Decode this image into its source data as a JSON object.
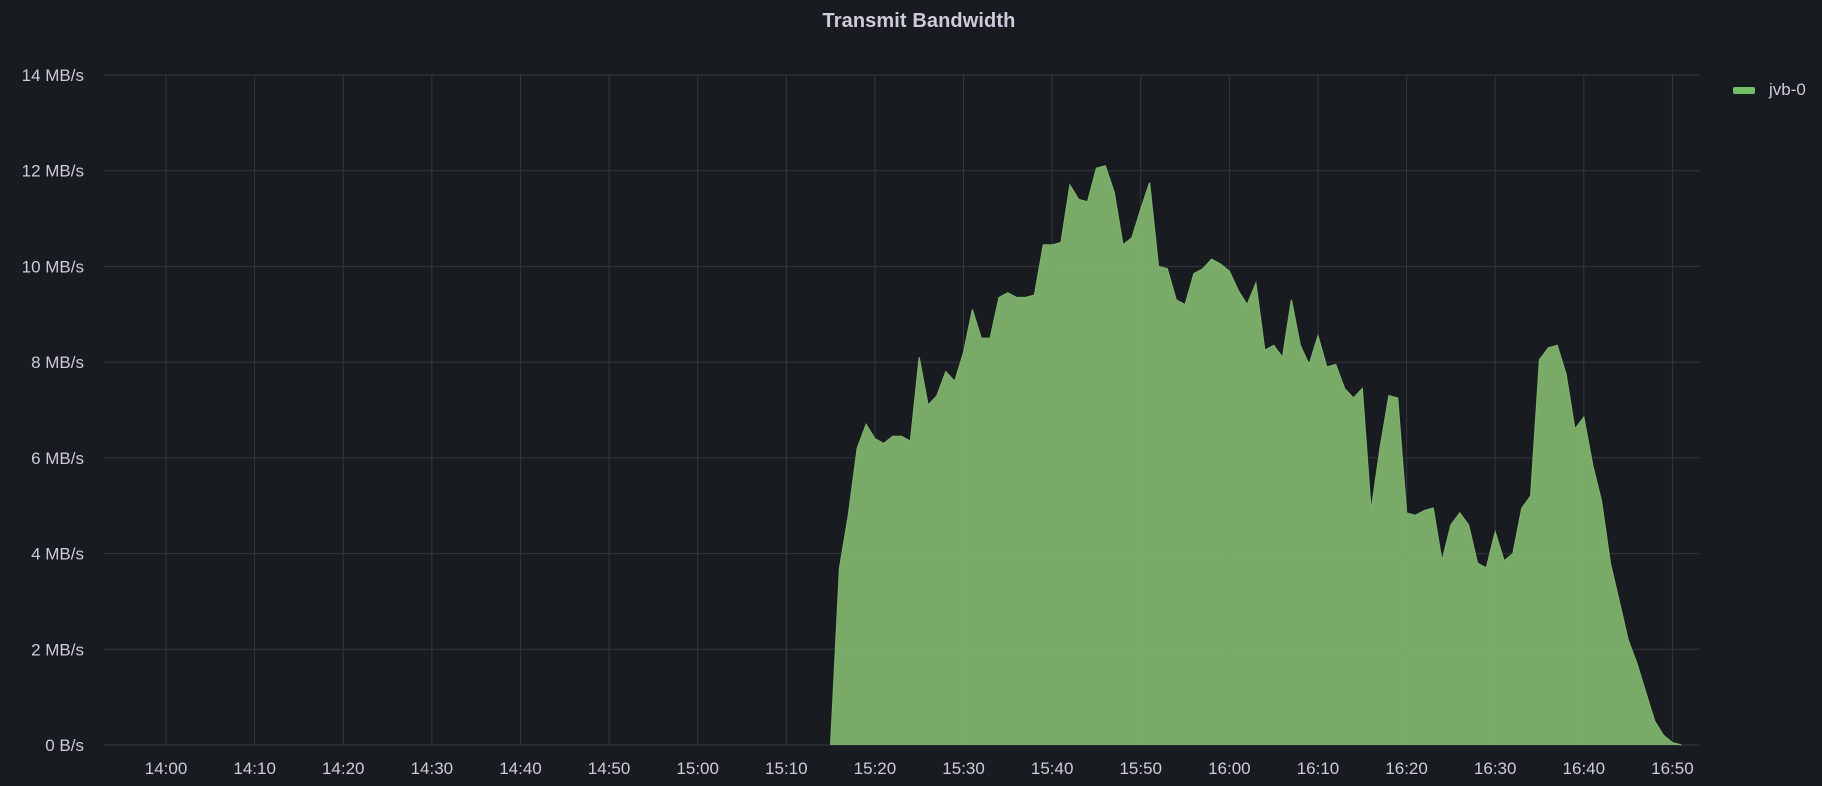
{
  "panel": {
    "title": "Transmit Bandwidth"
  },
  "legend": {
    "items": [
      {
        "label": "jvb-0",
        "color": "#73bf69"
      }
    ]
  },
  "colors": {
    "background": "#181b1f",
    "grid": "#34373d",
    "text": "#ccccdc",
    "series_fill": "#7eb26d"
  },
  "chart_data": {
    "type": "area",
    "title": "Transmit Bandwidth",
    "xlabel": "",
    "ylabel": "",
    "x_unit": "time (HH:MM)",
    "y_unit": "MB/s",
    "xlim": [
      "13:53",
      "16:53"
    ],
    "ylim": [
      0,
      14
    ],
    "grid": true,
    "legend_position": "right",
    "x_ticks": [
      "14:00",
      "14:10",
      "14:20",
      "14:30",
      "14:40",
      "14:50",
      "15:00",
      "15:10",
      "15:20",
      "15:30",
      "15:40",
      "15:50",
      "16:00",
      "16:10",
      "16:20",
      "16:30",
      "16:40",
      "16:50"
    ],
    "y_ticks": [
      "0 B/s",
      "2 MB/s",
      "4 MB/s",
      "6 MB/s",
      "8 MB/s",
      "10 MB/s",
      "12 MB/s",
      "14 MB/s"
    ],
    "y_tick_values": [
      0,
      2,
      4,
      6,
      8,
      10,
      12,
      14
    ],
    "series": [
      {
        "name": "jvb-0",
        "color": "#7eb26d",
        "x": [
          "15:15",
          "15:16",
          "15:17",
          "15:18",
          "15:19",
          "15:20",
          "15:21",
          "15:22",
          "15:23",
          "15:24",
          "15:25",
          "15:26",
          "15:27",
          "15:28",
          "15:29",
          "15:30",
          "15:31",
          "15:32",
          "15:33",
          "15:34",
          "15:35",
          "15:36",
          "15:37",
          "15:38",
          "15:39",
          "15:40",
          "15:41",
          "15:42",
          "15:43",
          "15:44",
          "15:45",
          "15:46",
          "15:47",
          "15:48",
          "15:49",
          "15:50",
          "15:51",
          "15:52",
          "15:53",
          "15:54",
          "15:55",
          "15:56",
          "15:57",
          "15:58",
          "15:59",
          "16:00",
          "16:01",
          "16:02",
          "16:03",
          "16:04",
          "16:05",
          "16:06",
          "16:07",
          "16:08",
          "16:09",
          "16:10",
          "16:11",
          "16:12",
          "16:13",
          "16:14",
          "16:15",
          "16:16",
          "16:17",
          "16:18",
          "16:19",
          "16:20",
          "16:21",
          "16:22",
          "16:23",
          "16:24",
          "16:25",
          "16:26",
          "16:27",
          "16:28",
          "16:29",
          "16:30",
          "16:31",
          "16:32",
          "16:33",
          "16:34",
          "16:35",
          "16:36",
          "16:37",
          "16:38",
          "16:39",
          "16:40",
          "16:41",
          "16:42",
          "16:43",
          "16:44",
          "16:45",
          "16:46",
          "16:47",
          "16:48",
          "16:49",
          "16:50",
          "16:51"
        ],
        "values": [
          0,
          3.7,
          4.8,
          6.2,
          6.7,
          6.4,
          6.3,
          6.45,
          6.45,
          6.35,
          8.1,
          7.1,
          7.3,
          7.8,
          7.6,
          8.2,
          9.1,
          8.5,
          8.5,
          9.35,
          9.45,
          9.35,
          9.35,
          9.4,
          10.45,
          10.45,
          10.5,
          11.7,
          11.4,
          11.35,
          12.05,
          12.1,
          11.55,
          10.45,
          10.6,
          11.2,
          11.75,
          10.0,
          9.95,
          9.3,
          9.2,
          9.85,
          9.95,
          10.15,
          10.05,
          9.9,
          9.5,
          9.2,
          9.65,
          8.25,
          8.35,
          8.1,
          9.3,
          8.35,
          7.95,
          8.55,
          7.9,
          7.95,
          7.45,
          7.25,
          7.45,
          4.9,
          6.2,
          7.3,
          7.25,
          4.85,
          4.8,
          4.9,
          4.95,
          3.85,
          4.6,
          4.85,
          4.6,
          3.8,
          3.7,
          4.45,
          3.85,
          4.0,
          4.95,
          5.2,
          8.05,
          8.3,
          8.35,
          7.75,
          6.6,
          6.85,
          5.85,
          5.1,
          3.8,
          3.0,
          2.2,
          1.7,
          1.1,
          0.5,
          0.2,
          0.05,
          0
        ]
      }
    ]
  }
}
